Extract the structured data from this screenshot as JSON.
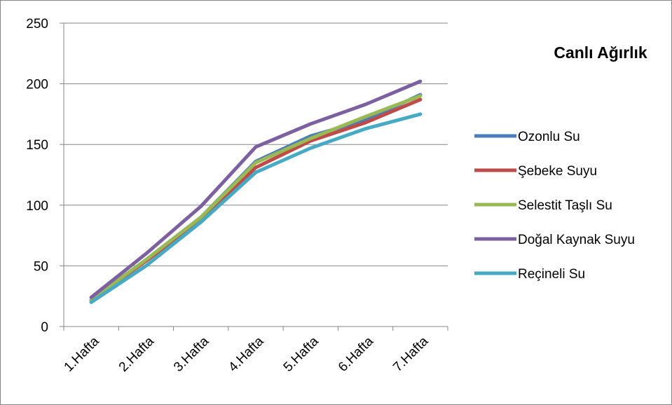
{
  "chart_data": {
    "type": "line",
    "title": "Canlı Ağırlık",
    "xlabel": "",
    "ylabel": "",
    "categories": [
      "1.Hafta",
      "2.Hafta",
      "3.Hafta",
      "4.Hafta",
      "5.Hafta",
      "6.Hafta",
      "7.Hafta"
    ],
    "ylim": [
      0,
      250
    ],
    "yticks": [
      0,
      50,
      100,
      150,
      200,
      250
    ],
    "grid": "horizontal",
    "legend_position": "right",
    "series": [
      {
        "name": "Ozonlu Su",
        "color": "#4a7ebb",
        "values": [
          21,
          55,
          90,
          136,
          157,
          170,
          191
        ]
      },
      {
        "name": "Şebeke Suyu",
        "color": "#be4b48",
        "values": [
          22,
          54,
          88,
          131,
          153,
          168,
          187
        ]
      },
      {
        "name": "Selestit Taşlı Su",
        "color": "#98b954",
        "values": [
          22,
          55,
          90,
          135,
          155,
          173,
          190
        ]
      },
      {
        "name": "Doğal Kaynak Suyu",
        "color": "#7d60a0",
        "values": [
          24,
          60,
          99,
          148,
          167,
          183,
          202
        ]
      },
      {
        "name": "Reçineli Su",
        "color": "#46aac5",
        "values": [
          20,
          50,
          86,
          127,
          147,
          163,
          175
        ]
      }
    ]
  }
}
